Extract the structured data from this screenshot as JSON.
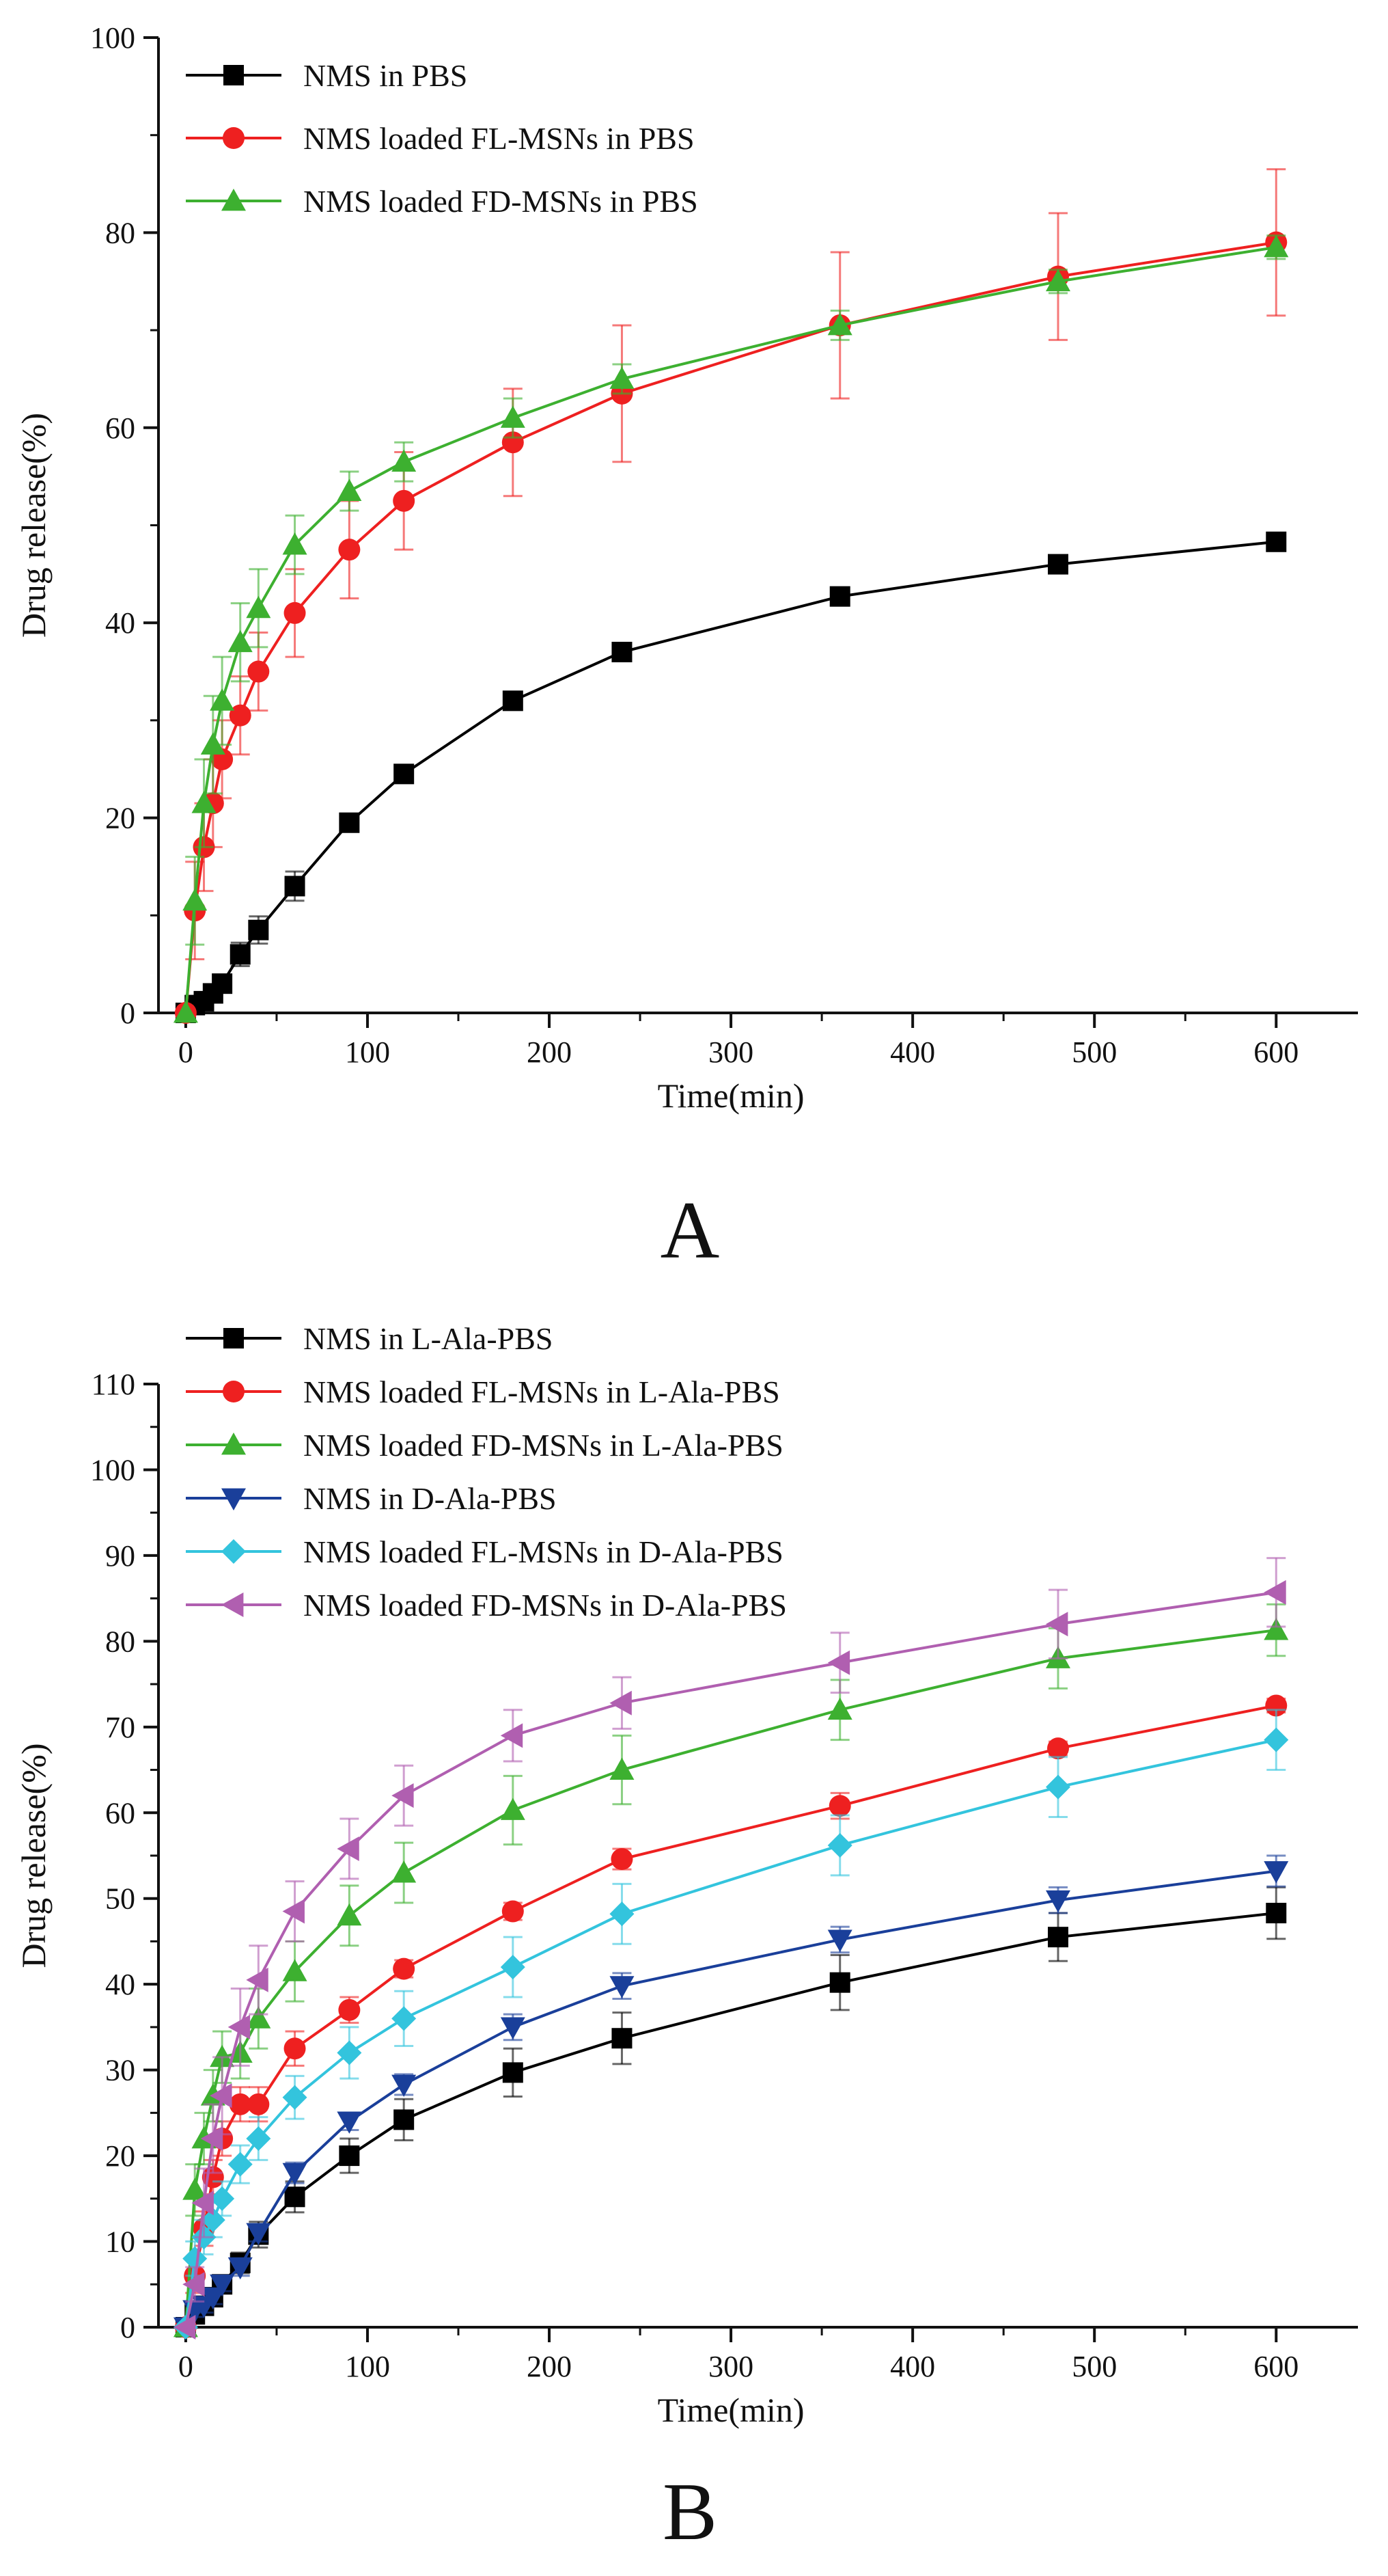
{
  "chart_data": [
    {
      "type": "line",
      "panel_label": "A",
      "xlabel": "Time(min)",
      "ylabel": "Drug release(%)",
      "xlim": [
        -15,
        645
      ],
      "ylim": [
        0,
        100
      ],
      "xticks": [
        0,
        100,
        200,
        300,
        400,
        500,
        600
      ],
      "yticks": [
        0,
        20,
        40,
        60,
        80,
        100
      ],
      "legend_position": "top-left",
      "x": [
        0,
        5,
        10,
        15,
        20,
        30,
        40,
        60,
        90,
        120,
        180,
        240,
        360,
        480,
        600
      ],
      "series": [
        {
          "name": "NMS in PBS",
          "color": "#000000",
          "marker": "square",
          "x": [
            0,
            5,
            10,
            15,
            20,
            30,
            40,
            60,
            90,
            120,
            180,
            240,
            360,
            480,
            600
          ],
          "values": [
            0,
            0.8,
            1.2,
            2.0,
            3.0,
            6.0,
            8.5,
            13.0,
            19.5,
            24.5,
            32.0,
            37.0,
            42.7,
            46.0,
            48.3
          ],
          "errors": [
            0,
            0.5,
            0.5,
            0.7,
            0.8,
            1.2,
            1.4,
            1.5,
            0.7,
            0.7,
            0.7,
            0.7,
            0.7,
            0.8,
            0.9
          ]
        },
        {
          "name": "NMS loaded FL-MSNs in PBS",
          "color": "#ee2020",
          "marker": "circle",
          "x": [
            0,
            5,
            10,
            15,
            20,
            30,
            40,
            60,
            90,
            120,
            180,
            240,
            360,
            480,
            600
          ],
          "values": [
            0,
            10.5,
            17.0,
            21.5,
            26.0,
            30.5,
            35.0,
            41.0,
            47.5,
            52.5,
            58.5,
            63.5,
            70.5,
            75.5,
            79.0
          ],
          "errors": [
            0,
            5.0,
            4.5,
            4.5,
            4.0,
            4.0,
            4.0,
            4.5,
            5.0,
            5.0,
            5.5,
            7.0,
            7.5,
            6.5,
            7.5
          ]
        },
        {
          "name": "NMS loaded FD-MSNs in PBS",
          "color": "#3db030",
          "marker": "triangle-up",
          "x": [
            0,
            5,
            10,
            15,
            20,
            30,
            40,
            60,
            90,
            120,
            180,
            240,
            360,
            480,
            600
          ],
          "values": [
            0,
            11.5,
            21.5,
            27.5,
            32.0,
            38.0,
            41.5,
            48.0,
            53.5,
            56.5,
            61.0,
            65.0,
            70.5,
            75.0,
            78.5
          ],
          "errors": [
            0,
            4.5,
            4.5,
            5.0,
            4.5,
            4.0,
            4.0,
            3.0,
            2.0,
            2.0,
            2.0,
            1.5,
            1.5,
            1.2,
            1.2
          ]
        }
      ]
    },
    {
      "type": "line",
      "panel_label": "B",
      "xlabel": "Time(min)",
      "ylabel": "Drug release(%)",
      "xlim": [
        -15,
        645
      ],
      "ylim": [
        0,
        110
      ],
      "xticks": [
        0,
        100,
        200,
        300,
        400,
        500,
        600
      ],
      "yticks": [
        0,
        10,
        20,
        30,
        40,
        50,
        60,
        70,
        80,
        90,
        100,
        110
      ],
      "legend_position": "top-left",
      "x": [
        0,
        5,
        10,
        15,
        20,
        30,
        40,
        60,
        90,
        120,
        180,
        240,
        360,
        480,
        600
      ],
      "series": [
        {
          "name": "NMS in L-Ala-PBS",
          "color": "#000000",
          "marker": "square",
          "x": [
            0,
            5,
            10,
            15,
            20,
            30,
            40,
            60,
            90,
            120,
            180,
            240,
            360,
            480,
            600
          ],
          "values": [
            0,
            1.5,
            2.5,
            3.5,
            5.0,
            7.5,
            10.8,
            15.2,
            20.0,
            24.2,
            29.7,
            33.7,
            40.2,
            45.5,
            48.3
          ],
          "errors": [
            0,
            0.8,
            0.8,
            0.8,
            1.0,
            1.2,
            1.5,
            1.8,
            2.0,
            2.4,
            2.8,
            3.0,
            3.2,
            2.8,
            3.0
          ]
        },
        {
          "name": "NMS loaded FL-MSNs in L-Ala-PBS",
          "color": "#ee2020",
          "marker": "circle",
          "x": [
            0,
            5,
            10,
            15,
            20,
            30,
            40,
            60,
            90,
            120,
            180,
            240,
            360,
            480,
            600
          ],
          "values": [
            0,
            6.0,
            11.5,
            17.5,
            22.0,
            26.0,
            26.0,
            32.5,
            37.0,
            41.8,
            48.5,
            54.6,
            60.8,
            67.5,
            72.5
          ],
          "errors": [
            0,
            2.0,
            2.0,
            2.0,
            2.0,
            2.0,
            2.0,
            2.0,
            1.5,
            1.0,
            1.0,
            1.2,
            1.5,
            0.8,
            0.8
          ]
        },
        {
          "name": "NMS loaded FD-MSNs in L-Ala-PBS",
          "color": "#3db030",
          "marker": "triangle-up",
          "x": [
            0,
            5,
            10,
            15,
            20,
            30,
            40,
            60,
            90,
            120,
            180,
            240,
            360,
            480,
            600
          ],
          "values": [
            0,
            16.0,
            22.0,
            27.0,
            31.5,
            32.0,
            36.0,
            41.5,
            48.0,
            53.0,
            60.3,
            65.0,
            72.0,
            78.0,
            81.3
          ],
          "errors": [
            0,
            3.0,
            3.0,
            3.0,
            3.0,
            3.0,
            3.5,
            3.5,
            3.5,
            3.5,
            4.0,
            4.0,
            3.5,
            3.5,
            3.0
          ]
        },
        {
          "name": "NMS in D-Ala-PBS",
          "color": "#1a3f9a",
          "marker": "triangle-down",
          "x": [
            0,
            5,
            10,
            15,
            20,
            30,
            40,
            60,
            90,
            120,
            180,
            240,
            360,
            480,
            600
          ],
          "values": [
            0,
            2.0,
            2.5,
            3.5,
            5.0,
            7.0,
            11.0,
            18.0,
            24.0,
            28.3,
            35.0,
            39.8,
            45.2,
            49.8,
            53.2
          ],
          "errors": [
            0,
            0.8,
            0.8,
            0.8,
            0.8,
            1.0,
            1.0,
            1.2,
            1.0,
            1.2,
            1.5,
            1.5,
            1.5,
            1.5,
            1.8
          ]
        },
        {
          "name": "NMS loaded FL-MSNs in D-Ala-PBS",
          "color": "#33c4dd",
          "marker": "diamond",
          "x": [
            0,
            5,
            10,
            15,
            20,
            30,
            40,
            60,
            90,
            120,
            180,
            240,
            360,
            480,
            600
          ],
          "values": [
            0,
            8.0,
            10.5,
            12.5,
            15.0,
            19.0,
            22.0,
            26.8,
            32.0,
            36.0,
            42.0,
            48.2,
            56.2,
            63.0,
            68.5
          ],
          "errors": [
            0,
            2.0,
            2.0,
            2.0,
            2.0,
            2.2,
            2.5,
            2.5,
            3.0,
            3.2,
            3.5,
            3.5,
            3.5,
            3.5,
            3.5
          ]
        },
        {
          "name": "NMS loaded FD-MSNs in D-Ala-PBS",
          "color": "#b05fb0",
          "marker": "triangle-left",
          "x": [
            0,
            5,
            10,
            15,
            20,
            30,
            40,
            60,
            90,
            120,
            180,
            240,
            360,
            480,
            600
          ],
          "values": [
            0,
            5.0,
            14.5,
            22.0,
            27.0,
            35.0,
            40.5,
            48.5,
            55.8,
            62.0,
            69.0,
            72.8,
            77.5,
            82.0,
            85.7
          ],
          "errors": [
            0,
            2.0,
            4.0,
            4.0,
            4.5,
            4.5,
            4.0,
            3.5,
            3.5,
            3.5,
            3.0,
            3.0,
            3.5,
            4.0,
            4.0
          ]
        }
      ]
    }
  ]
}
